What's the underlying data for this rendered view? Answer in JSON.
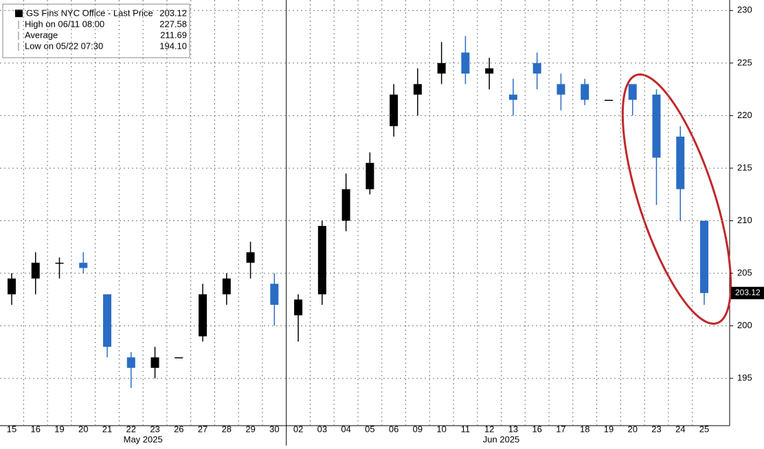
{
  "chart_data": {
    "type": "candlestick",
    "legend": {
      "labels": [
        "GS Fins NYC Office - Last Price",
        "High on 06/11 08:00",
        "Average",
        "Low on 05/22 07:30"
      ],
      "values": [
        203.12,
        227.58,
        211.69,
        194.1
      ],
      "value_labels": [
        "203.12",
        "227.58",
        "211.69",
        "194.10"
      ]
    },
    "categories": [
      "15",
      "16",
      "19",
      "20",
      "21",
      "22",
      "23",
      "26",
      "27",
      "28",
      "29",
      "30",
      "02",
      "03",
      "04",
      "05",
      "06",
      "09",
      "10",
      "11",
      "12",
      "13",
      "16",
      "17",
      "18",
      "19",
      "20",
      "23",
      "24",
      "25"
    ],
    "months": [
      "May 2025",
      "Jun 2025"
    ],
    "open": [
      203,
      204.5,
      206,
      206,
      203,
      197,
      196,
      197,
      199,
      203,
      206,
      204,
      201,
      203,
      210,
      213,
      219,
      222,
      224,
      226,
      224,
      222,
      225,
      223,
      223,
      221.5,
      223,
      222,
      218,
      210
    ],
    "high": [
      205,
      207,
      206.5,
      207,
      203,
      197.5,
      198,
      197,
      204,
      205,
      208,
      205,
      203,
      210,
      214.5,
      216.5,
      223,
      224.5,
      227,
      227.58,
      225.5,
      223.5,
      226,
      224,
      223.5,
      221.5,
      223,
      222.5,
      219,
      210
    ],
    "low": [
      202,
      203,
      204.5,
      205,
      197,
      194.1,
      195,
      197,
      198.5,
      202,
      204.5,
      200,
      198.5,
      202,
      209,
      212.5,
      218,
      220,
      223,
      223,
      222.5,
      220,
      222.5,
      220.5,
      221,
      221.5,
      220,
      211.5,
      210,
      202
    ],
    "close": [
      204.5,
      206,
      206,
      205.5,
      198,
      196,
      197,
      197,
      203,
      204.5,
      207,
      202,
      202.5,
      209.5,
      213,
      215.5,
      222,
      223,
      225,
      224,
      224.5,
      221.5,
      224,
      222,
      221.5,
      221.5,
      221.5,
      216,
      213,
      203.12
    ],
    "up_color": "#000000",
    "down_color": "#2a6cc4",
    "ylim": [
      190.5,
      231
    ],
    "yticks": [
      195,
      200,
      205,
      210,
      215,
      220,
      225,
      230
    ],
    "grid": true
  }
}
